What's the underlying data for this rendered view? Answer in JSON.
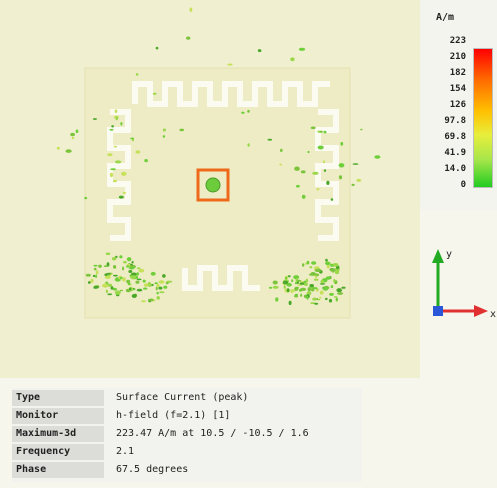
{
  "legend": {
    "unit": "A/m",
    "ticks": [
      "223",
      "210",
      "182",
      "154",
      "126",
      "97.8",
      "69.8",
      "41.9",
      "14.0",
      "0"
    ],
    "colors": [
      "#ff0000",
      "#ff6a00",
      "#ffc000",
      "#e8ee3c",
      "#a8e64a",
      "#22cc22"
    ]
  },
  "axes": {
    "y_label": "y",
    "x_label": "x",
    "y_color": "#22aa22",
    "x_color": "#e03030"
  },
  "info": {
    "rows": [
      {
        "key": "Type",
        "value": "Surface Current (peak)"
      },
      {
        "key": "Monitor",
        "value": "h-field (f=2.1) [1]"
      },
      {
        "key": "Maximum-3d",
        "value": "223.47 A/m at 10.5 / -10.5 / 1.6"
      },
      {
        "key": "Frequency",
        "value": "2.1"
      },
      {
        "key": "Phase",
        "value": "67.5 degrees"
      }
    ]
  }
}
